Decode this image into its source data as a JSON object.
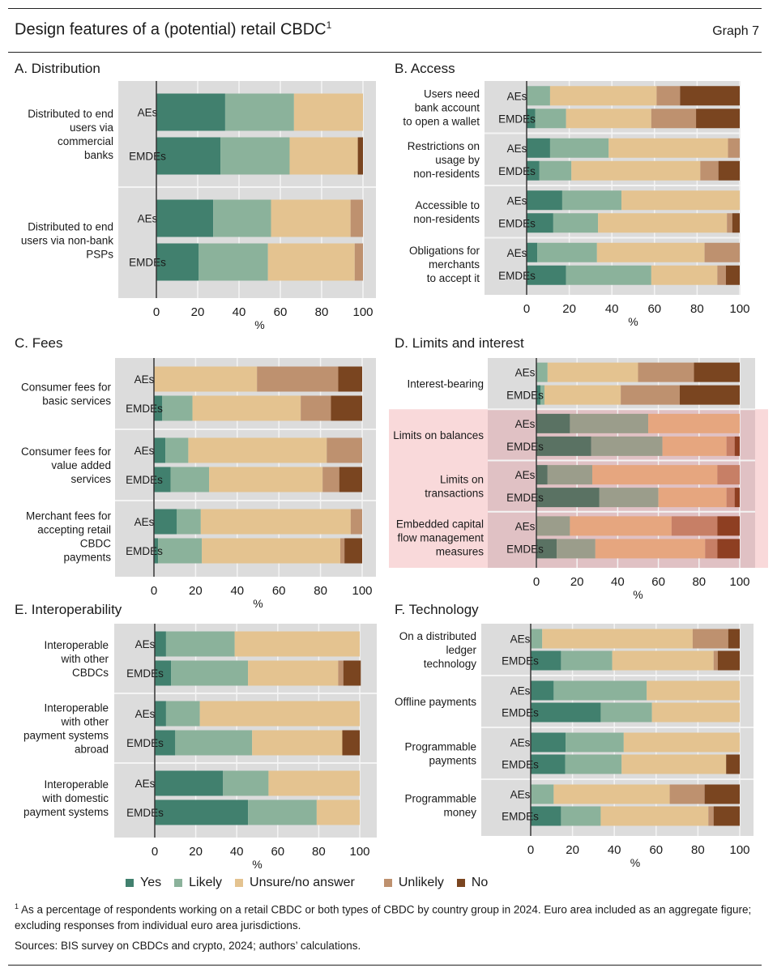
{
  "header": {
    "title": "Design features of a (potential) retail CBDC",
    "title_footnote_mark": "1",
    "graph_number": "Graph 7"
  },
  "legend": [
    {
      "key": "yes",
      "label": "Yes",
      "color": "#41806e"
    },
    {
      "key": "likely",
      "label": "Likely",
      "color": "#8bb29b"
    },
    {
      "key": "unsure",
      "label": "Unsure/no answer",
      "color": "#e4c390"
    },
    {
      "key": "unlikely",
      "label": "Unlikely",
      "color": "#be916f"
    },
    {
      "key": "no",
      "label": "No",
      "color": "#7a4520"
    }
  ],
  "highlight_colors": {
    "panel_bg": "#f9d9da",
    "yes": "#5a7263",
    "likely": "#9b9d8b",
    "unsure": "#e6a67f",
    "unlikely": "#c77f66",
    "no": "#8e3f22"
  },
  "footnote": {
    "mark": "1",
    "text": "As a percentage of respondents working on a retail CBDC or both types of CBDC by country group in 2024. Euro area included as an aggregate figure; excluding responses from individual euro area jurisdictions."
  },
  "sources": "Sources: BIS survey on CBDCs and crypto, 2024; authors’ calculations.",
  "chart_data": [
    {
      "id": "A",
      "type": "bar",
      "orientation": "horizontal-stacked",
      "title": "A. Distribution",
      "xlabel": "%",
      "xlim": [
        0,
        100
      ],
      "xticks": [
        0,
        20,
        40,
        60,
        80,
        100
      ],
      "grid": true,
      "series_order": [
        "Yes",
        "Likely",
        "Unsure/no answer",
        "Unlikely",
        "No"
      ],
      "groups": [
        {
          "label": "Distributed to end users via commercial banks",
          "label_lines": [
            "Distributed to end",
            "users via",
            "commercial",
            "banks"
          ],
          "bars": [
            {
              "name": "AEs",
              "values": [
                33.3,
                33.3,
                33.4,
                0,
                0
              ]
            },
            {
              "name": "EMDEs",
              "values": [
                31,
                33.5,
                33,
                0,
                2.5
              ]
            }
          ]
        },
        {
          "label": "Distributed to end users via non-bank PSPs",
          "label_lines": [
            "Distributed to end",
            "users via non-bank",
            "PSPs"
          ],
          "bars": [
            {
              "name": "AEs",
              "values": [
                27.5,
                28,
                38.5,
                6,
                0
              ]
            },
            {
              "name": "EMDEs",
              "values": [
                20.5,
                33.5,
                42,
                4,
                0
              ]
            }
          ]
        }
      ]
    },
    {
      "id": "B",
      "type": "bar",
      "orientation": "horizontal-stacked",
      "title": "B. Access",
      "xlabel": "%",
      "xlim": [
        0,
        100
      ],
      "xticks": [
        0,
        20,
        40,
        60,
        80,
        100
      ],
      "grid": true,
      "series_order": [
        "Yes",
        "Likely",
        "Unsure/no answer",
        "Unlikely",
        "No"
      ],
      "groups": [
        {
          "label": "Users need bank account to open a wallet",
          "label_lines": [
            "Users need",
            "bank account",
            "to open a wallet"
          ],
          "bars": [
            {
              "name": "AEs",
              "values": [
                0,
                11,
                50,
                11,
                28
              ]
            },
            {
              "name": "EMDEs",
              "values": [
                4,
                14.5,
                40,
                21,
                20.5
              ]
            }
          ]
        },
        {
          "label": "Restrictions on usage by non-residents",
          "label_lines": [
            "Restrictions on",
            "usage by",
            "non-residents"
          ],
          "bars": [
            {
              "name": "AEs",
              "values": [
                11,
                27.5,
                56,
                5.5,
                0
              ]
            },
            {
              "name": "EMDEs",
              "values": [
                6,
                15,
                60.5,
                8.5,
                10
              ]
            }
          ]
        },
        {
          "label": "Accessible to non-residents",
          "label_lines": [
            "Accessible to",
            "non-residents"
          ],
          "bars": [
            {
              "name": "AEs",
              "values": [
                16.7,
                27.8,
                55.5,
                0,
                0
              ]
            },
            {
              "name": "EMDEs",
              "values": [
                12.5,
                21,
                60.5,
                2.5,
                3.5
              ]
            }
          ]
        },
        {
          "label": "Obligations for merchants to accept it",
          "label_lines": [
            "Obligations for",
            "merchants",
            "to accept it"
          ],
          "bars": [
            {
              "name": "AEs",
              "values": [
                5,
                28,
                50.5,
                16.5,
                0
              ]
            },
            {
              "name": "EMDEs",
              "values": [
                18.5,
                40,
                31,
                4,
                6.5
              ]
            }
          ]
        }
      ]
    },
    {
      "id": "C",
      "type": "bar",
      "orientation": "horizontal-stacked",
      "title": "C. Fees",
      "xlabel": "%",
      "xlim": [
        0,
        100
      ],
      "xticks": [
        0,
        20,
        40,
        60,
        80,
        100
      ],
      "grid": true,
      "series_order": [
        "Yes",
        "Likely",
        "Unsure/no answer",
        "Unlikely",
        "No"
      ],
      "groups": [
        {
          "label": "Consumer fees for basic services",
          "label_lines": [
            "Consumer fees for",
            "basic services"
          ],
          "bars": [
            {
              "name": "AEs",
              "values": [
                0,
                0,
                49.5,
                39,
                11.5
              ]
            },
            {
              "name": "EMDEs",
              "values": [
                4,
                14.5,
                52,
                14.5,
                15
              ]
            }
          ]
        },
        {
          "label": "Consumer fees for value added services",
          "label_lines": [
            "Consumer fees for",
            "value added",
            "services"
          ],
          "bars": [
            {
              "name": "AEs",
              "values": [
                5.5,
                11,
                66.5,
                17,
                0
              ]
            },
            {
              "name": "EMDEs",
              "values": [
                8,
                18.5,
                54.5,
                8,
                11
              ]
            }
          ]
        },
        {
          "label": "Merchant fees for accepting retail CBDC payments",
          "label_lines": [
            "Merchant fees for",
            "accepting retail",
            "CBDC",
            "payments"
          ],
          "bars": [
            {
              "name": "AEs",
              "values": [
                11,
                11.5,
                72,
                5.5,
                0
              ]
            },
            {
              "name": "EMDEs",
              "values": [
                2,
                21,
                66.5,
                2,
                8.5
              ]
            }
          ]
        }
      ]
    },
    {
      "id": "D",
      "type": "bar",
      "orientation": "horizontal-stacked",
      "title": "D. Limits and interest",
      "xlabel": "%",
      "xlim": [
        0,
        100
      ],
      "xticks": [
        0,
        20,
        40,
        60,
        80,
        100
      ],
      "grid": true,
      "highlighted_groups": [
        "Limits on balances",
        "Limits on transactions",
        "Embedded capital flow management measures"
      ],
      "series_order": [
        "Yes",
        "Likely",
        "Unsure/no answer",
        "Unlikely",
        "No"
      ],
      "groups": [
        {
          "label": "Interest-bearing",
          "label_lines": [
            "Interest-bearing"
          ],
          "bars": [
            {
              "name": "AEs",
              "values": [
                0,
                5.5,
                44.5,
                27.5,
                22.5
              ]
            },
            {
              "name": "EMDEs",
              "values": [
                2,
                2,
                37.5,
                29,
                29.5
              ]
            }
          ]
        },
        {
          "label": "Limits on balances",
          "label_lines": [
            "Limits on balances"
          ],
          "bars": [
            {
              "name": "AEs",
              "values": [
                16.5,
                38.5,
                45,
                0,
                0
              ]
            },
            {
              "name": "EMDEs",
              "values": [
                27,
                35,
                31.5,
                4,
                2.5
              ]
            }
          ]
        },
        {
          "label": "Limits on transactions",
          "label_lines": [
            "Limits on",
            "transactions"
          ],
          "bars": [
            {
              "name": "AEs",
              "values": [
                5.5,
                22,
                61.5,
                11,
                0
              ]
            },
            {
              "name": "EMDEs",
              "values": [
                31,
                29,
                33.5,
                4,
                2.5
              ]
            }
          ]
        },
        {
          "label": "Embedded capital flow management measures",
          "label_lines": [
            "Embedded capital",
            "flow management",
            "measures"
          ],
          "bars": [
            {
              "name": "AEs",
              "values": [
                0,
                16.5,
                50,
                22.5,
                11
              ]
            },
            {
              "name": "EMDEs",
              "values": [
                10,
                19,
                54,
                6,
                11
              ]
            }
          ]
        }
      ]
    },
    {
      "id": "E",
      "type": "bar",
      "orientation": "horizontal-stacked",
      "title": "E. Interoperability",
      "xlabel": "%",
      "xlim": [
        0,
        100
      ],
      "xticks": [
        0,
        20,
        40,
        60,
        80,
        100
      ],
      "grid": true,
      "series_order": [
        "Yes",
        "Likely",
        "Unsure/no answer",
        "Unlikely",
        "No"
      ],
      "groups": [
        {
          "label": "Interoperable with other CBDCs",
          "label_lines": [
            "Interoperable",
            "with other",
            "CBDCs"
          ],
          "bars": [
            {
              "name": "AEs",
              "values": [
                5.5,
                33.5,
                61,
                0,
                0
              ]
            },
            {
              "name": "EMDEs",
              "values": [
                8,
                37.5,
                44,
                2.5,
                8.5
              ]
            }
          ]
        },
        {
          "label": "Interoperable with other payment systems abroad",
          "label_lines": [
            "Interoperable",
            "with other",
            "payment systems",
            "abroad"
          ],
          "bars": [
            {
              "name": "AEs",
              "values": [
                5.5,
                16.5,
                78,
                0,
                0
              ]
            },
            {
              "name": "EMDEs",
              "values": [
                10,
                37.5,
                44,
                0,
                8.5
              ]
            }
          ]
        },
        {
          "label": "Interoperable with domestic payment systems",
          "label_lines": [
            "Interoperable",
            "with domestic",
            "payment systems"
          ],
          "bars": [
            {
              "name": "AEs",
              "values": [
                33.3,
                22.2,
                44.5,
                0,
                0
              ]
            },
            {
              "name": "EMDEs",
              "values": [
                45.5,
                33.5,
                21,
                0,
                0
              ]
            }
          ]
        }
      ]
    },
    {
      "id": "F",
      "type": "bar",
      "orientation": "horizontal-stacked",
      "title": "F. Technology",
      "xlabel": "%",
      "xlim": [
        0,
        100
      ],
      "xticks": [
        0,
        20,
        40,
        60,
        80,
        100
      ],
      "grid": true,
      "series_order": [
        "Yes",
        "Likely",
        "Unsure/no answer",
        "Unlikely",
        "No"
      ],
      "groups": [
        {
          "label": "On a distributed ledger technology",
          "label_lines": [
            "On a distributed",
            "ledger",
            "technology"
          ],
          "bars": [
            {
              "name": "AEs",
              "values": [
                0,
                5.5,
                72,
                17,
                5.5
              ]
            },
            {
              "name": "EMDEs",
              "values": [
                14.5,
                24.5,
                48.5,
                2,
                10.5
              ]
            }
          ]
        },
        {
          "label": "Offline payments",
          "label_lines": [
            "Offline payments"
          ],
          "bars": [
            {
              "name": "AEs",
              "values": [
                11,
                44.5,
                44.5,
                0,
                0
              ]
            },
            {
              "name": "EMDEs",
              "values": [
                33.5,
                24.5,
                42,
                0,
                0
              ]
            }
          ]
        },
        {
          "label": "Programmable payments",
          "label_lines": [
            "Programmable",
            "payments"
          ],
          "bars": [
            {
              "name": "AEs",
              "values": [
                16.7,
                27.8,
                55.5,
                0,
                0
              ]
            },
            {
              "name": "EMDEs",
              "values": [
                16.5,
                27,
                50,
                0,
                6.5
              ]
            }
          ]
        },
        {
          "label": "Programmable money",
          "label_lines": [
            "Programmable",
            "money"
          ],
          "bars": [
            {
              "name": "AEs",
              "values": [
                0,
                11,
                55.5,
                16.7,
                16.8
              ]
            },
            {
              "name": "EMDEs",
              "values": [
                14.5,
                19,
                51.5,
                2.5,
                12.5
              ]
            }
          ]
        }
      ]
    }
  ]
}
